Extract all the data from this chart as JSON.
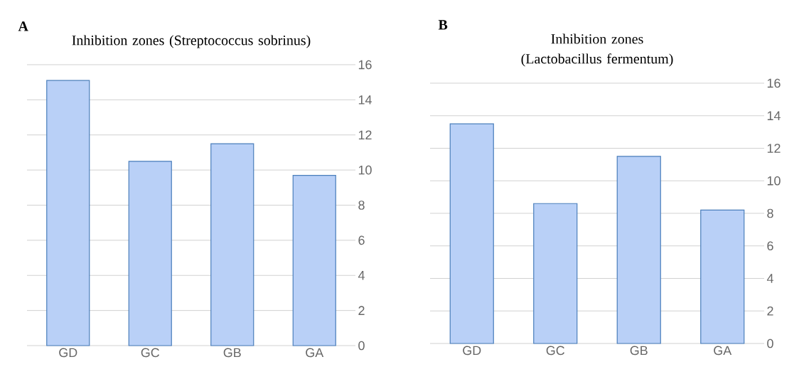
{
  "chart_data": [
    {
      "type": "bar",
      "title": "Inhibition zones (Streptococcus sobrinus)",
      "annotations": [
        "A"
      ],
      "categories": [
        "GD",
        "GC",
        "GB",
        "GA"
      ],
      "values": [
        15.1,
        10.5,
        11.5,
        9.7
      ],
      "color": "#b9d0f7",
      "ylim": [
        0,
        16
      ],
      "yticks": [
        0,
        2,
        4,
        6,
        8,
        10,
        12,
        14,
        16
      ],
      "grid": "y"
    },
    {
      "type": "bar",
      "title": "Inhibition zones (Lactobacillus fermentum)",
      "annotations": [
        "B"
      ],
      "categories": [
        "GD",
        "GC",
        "GB",
        "GA"
      ],
      "values": [
        13.5,
        8.6,
        11.5,
        8.2
      ],
      "color": "#b9d0f7",
      "ylim": [
        0,
        16
      ],
      "yticks": [
        0,
        2,
        4,
        6,
        8,
        10,
        12,
        14,
        16
      ],
      "grid": "y"
    }
  ]
}
